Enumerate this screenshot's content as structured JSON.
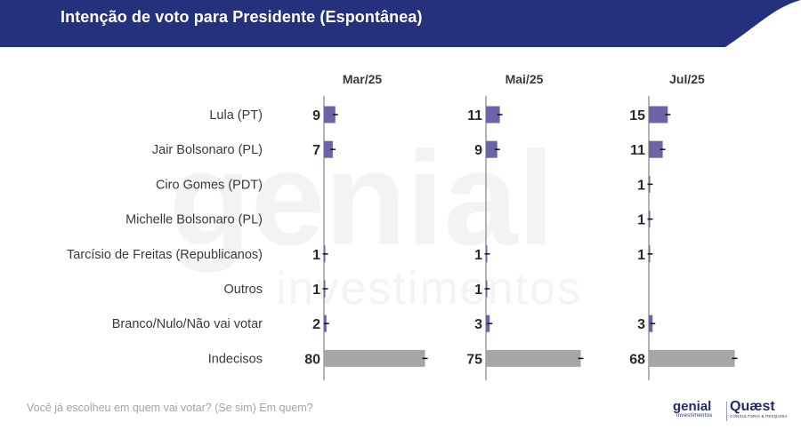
{
  "header": {
    "title": "Intenção de voto para Presidente (Espontânea)"
  },
  "footer": {
    "question": "Você já escolheu em quem vai votar? (Se sim) Em quem?"
  },
  "logos": {
    "genial": "genial",
    "genial_sub": "investimentos",
    "quaest": "Quæst",
    "quaest_sub": "CONSULTORIA & PESQUISA"
  },
  "watermark": {
    "line1": "genial",
    "line2": "investimentos"
  },
  "colors": {
    "header_bg": "#25317c",
    "candidate_bar": "#6b64a8",
    "undecided_bar": "#a6a6a6",
    "axis": "#9a9a9a",
    "text": "#3a3a3a"
  },
  "chart_data": {
    "type": "bar",
    "orientation": "horizontal",
    "categories": [
      "Lula (PT)",
      "Jair Bolsonaro (PL)",
      "Ciro Gomes (PDT)",
      "Michelle Bolsonaro (PL)",
      "Tarcísio de Freitas (Republicanos)",
      "Outros",
      "Branco/Nulo/Não vai votar",
      "Indecisos"
    ],
    "series": [
      {
        "name": "Mar/25",
        "values": [
          9,
          7,
          null,
          null,
          1,
          1,
          2,
          80
        ]
      },
      {
        "name": "Mai/25",
        "values": [
          11,
          9,
          null,
          null,
          1,
          1,
          3,
          75
        ]
      },
      {
        "name": "Jul/25",
        "values": [
          15,
          11,
          1,
          1,
          1,
          null,
          3,
          68
        ]
      }
    ],
    "error_bars": true,
    "xlim": [
      0,
      100
    ]
  }
}
